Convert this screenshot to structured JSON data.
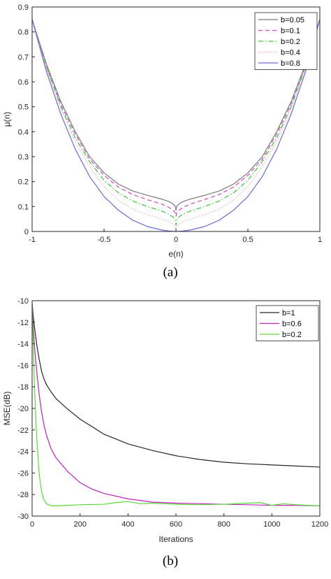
{
  "chart_data": [
    {
      "type": "line",
      "caption": "(a)",
      "xlabel": "e(n)",
      "ylabel": "μ(n)",
      "xlim": [
        -1,
        1
      ],
      "ylim": [
        0,
        0.9
      ],
      "xticks": [
        -1,
        -0.5,
        0,
        0.5,
        1
      ],
      "xtick_labels": [
        "-1",
        "-0.5",
        "0",
        "0.5",
        "1"
      ],
      "yticks": [
        0,
        0.1,
        0.2,
        0.3,
        0.4,
        0.5,
        0.6,
        0.7,
        0.8,
        0.9
      ],
      "ytick_labels": [
        "0",
        "0.1",
        "0.2",
        "0.3",
        "0.4",
        "0.5",
        "0.6",
        "0.7",
        "0.8",
        "0.9"
      ],
      "grid": false,
      "legend_position": "top-right",
      "x": [
        -1.0,
        -0.9,
        -0.8,
        -0.7,
        -0.6,
        -0.5,
        -0.4,
        -0.3,
        -0.2,
        -0.1,
        -0.05,
        -0.02,
        -0.005,
        0.0,
        0.005,
        0.02,
        0.05,
        0.1,
        0.2,
        0.3,
        0.4,
        0.5,
        0.6,
        0.7,
        0.8,
        0.9,
        1.0
      ],
      "series": [
        {
          "name": "b=0.05",
          "color": "#7a7a7a",
          "dash": "solid",
          "values": [
            0.85,
            0.67,
            0.52,
            0.4,
            0.3,
            0.235,
            0.19,
            0.162,
            0.145,
            0.13,
            0.12,
            0.11,
            0.1,
            0.085,
            0.1,
            0.11,
            0.12,
            0.13,
            0.145,
            0.162,
            0.19,
            0.235,
            0.3,
            0.4,
            0.52,
            0.67,
            0.85
          ]
        },
        {
          "name": "b=0.1",
          "color": "#d645c8",
          "dash": "6,4",
          "values": [
            0.85,
            0.66,
            0.51,
            0.39,
            0.29,
            0.225,
            0.178,
            0.148,
            0.128,
            0.11,
            0.097,
            0.085,
            0.075,
            0.06,
            0.075,
            0.085,
            0.097,
            0.11,
            0.128,
            0.148,
            0.178,
            0.225,
            0.29,
            0.39,
            0.51,
            0.66,
            0.85
          ]
        },
        {
          "name": "b=0.2",
          "color": "#33cc33",
          "dash": "7,3,1.5,3",
          "values": [
            0.85,
            0.66,
            0.5,
            0.375,
            0.28,
            0.205,
            0.155,
            0.122,
            0.1,
            0.082,
            0.07,
            0.058,
            0.045,
            0.025,
            0.045,
            0.058,
            0.07,
            0.082,
            0.1,
            0.122,
            0.155,
            0.205,
            0.28,
            0.375,
            0.5,
            0.66,
            0.85
          ]
        },
        {
          "name": "b=0.4",
          "color": "#e8b0c8",
          "dash": "1.5,2",
          "values": [
            0.85,
            0.65,
            0.49,
            0.36,
            0.26,
            0.18,
            0.125,
            0.09,
            0.068,
            0.05,
            0.04,
            0.03,
            0.02,
            0.01,
            0.02,
            0.03,
            0.04,
            0.05,
            0.068,
            0.09,
            0.125,
            0.18,
            0.26,
            0.36,
            0.49,
            0.65,
            0.85
          ]
        },
        {
          "name": "b=0.8",
          "color": "#6a6adf",
          "dash": "solid",
          "values": [
            0.85,
            0.64,
            0.47,
            0.33,
            0.22,
            0.14,
            0.085,
            0.045,
            0.02,
            0.006,
            0.002,
            0.0005,
            0.0001,
            0.0,
            0.0001,
            0.0005,
            0.002,
            0.006,
            0.02,
            0.045,
            0.085,
            0.14,
            0.22,
            0.33,
            0.47,
            0.64,
            0.85
          ]
        }
      ]
    },
    {
      "type": "line",
      "caption": "(b)",
      "xlabel": "Iterations",
      "ylabel": "MSE(dB)",
      "xlim": [
        0,
        1200
      ],
      "ylim": [
        -30,
        -10
      ],
      "xticks": [
        0,
        200,
        400,
        600,
        800,
        1000,
        1200
      ],
      "xtick_labels": [
        "0",
        "200",
        "400",
        "600",
        "800",
        "1000",
        "1200"
      ],
      "yticks": [
        -30,
        -28,
        -26,
        -24,
        -22,
        -20,
        -18,
        -16,
        -14,
        -12,
        -10
      ],
      "ytick_labels": [
        "-30",
        "-28",
        "-26",
        "-24",
        "-22",
        "-20",
        "-18",
        "-16",
        "-14",
        "-12",
        "-10"
      ],
      "grid": false,
      "legend_position": "top-right",
      "series": [
        {
          "name": "b=1",
          "color": "#262626",
          "x": [
            0,
            5,
            10,
            20,
            30,
            40,
            50,
            60,
            80,
            100,
            150,
            200,
            300,
            400,
            500,
            600,
            700,
            800,
            900,
            1000,
            1100,
            1200
          ],
          "values": [
            -10.3,
            -11.5,
            -12.5,
            -14.2,
            -15.5,
            -16.6,
            -17.3,
            -17.8,
            -18.5,
            -19.1,
            -20.1,
            -21.0,
            -22.4,
            -23.3,
            -23.9,
            -24.4,
            -24.75,
            -25.0,
            -25.15,
            -25.25,
            -25.35,
            -25.45
          ]
        },
        {
          "name": "b=0.6",
          "color": "#c020c0",
          "x": [
            0,
            5,
            10,
            20,
            30,
            40,
            50,
            60,
            80,
            100,
            150,
            200,
            250,
            300,
            400,
            500,
            600,
            700,
            800,
            900,
            1000,
            1100,
            1200
          ],
          "values": [
            -10.3,
            -12.5,
            -14.3,
            -16.8,
            -18.8,
            -20.4,
            -21.6,
            -22.5,
            -23.8,
            -24.6,
            -25.9,
            -26.9,
            -27.5,
            -27.9,
            -28.4,
            -28.7,
            -28.8,
            -28.85,
            -28.9,
            -28.95,
            -29.0,
            -29.0,
            -29.05
          ]
        },
        {
          "name": "b=0.2",
          "color": "#55dd33",
          "x": [
            0,
            5,
            10,
            15,
            20,
            30,
            40,
            50,
            60,
            70,
            80,
            100,
            150,
            200,
            300,
            350,
            400,
            450,
            500,
            600,
            700,
            800,
            900,
            950,
            1000,
            1050,
            1100,
            1150,
            1200
          ],
          "values": [
            -10.3,
            -14.5,
            -18.0,
            -20.8,
            -23.0,
            -26.2,
            -27.8,
            -28.5,
            -28.85,
            -28.95,
            -29.05,
            -29.05,
            -29.0,
            -28.95,
            -28.9,
            -28.75,
            -28.65,
            -28.85,
            -28.8,
            -28.9,
            -28.95,
            -28.9,
            -28.8,
            -28.75,
            -29.0,
            -28.85,
            -28.95,
            -29.0,
            -29.05
          ]
        }
      ]
    }
  ]
}
